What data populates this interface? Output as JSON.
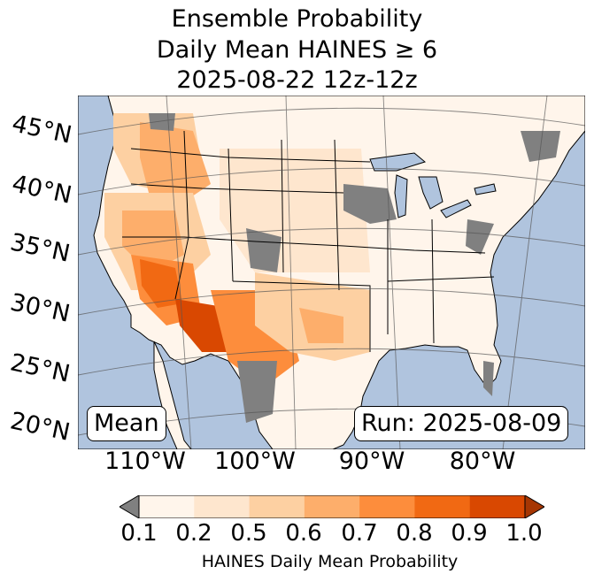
{
  "title": {
    "line1": "Ensemble Probability",
    "line2": "Daily Mean HAINES ≥ 6",
    "line3": "2025-08-22 12z-12z"
  },
  "map": {
    "lat_labels": [
      "45°N",
      "40°N",
      "35°N",
      "30°N",
      "25°N",
      "20°N"
    ],
    "lon_labels": [
      "110°W",
      "100°W",
      "90°W",
      "80°W"
    ],
    "left_box": "Mean",
    "right_box": "Run: 2025-08-09",
    "colors": {
      "ocean": "#b0c4de",
      "missing": "#808080",
      "land_base": "#fff5eb"
    }
  },
  "colorbar": {
    "ticks": [
      "0.1",
      "0.2",
      "0.5",
      "0.6",
      "0.7",
      "0.8",
      "0.9",
      "1.0"
    ],
    "colors": [
      "#fff5eb",
      "#fee6ce",
      "#fdd0a2",
      "#fdae6b",
      "#fd8d3c",
      "#f16913",
      "#d94801",
      "#a63603"
    ],
    "under_color": "#808080",
    "label": "HAINES Daily Mean Probability"
  }
}
